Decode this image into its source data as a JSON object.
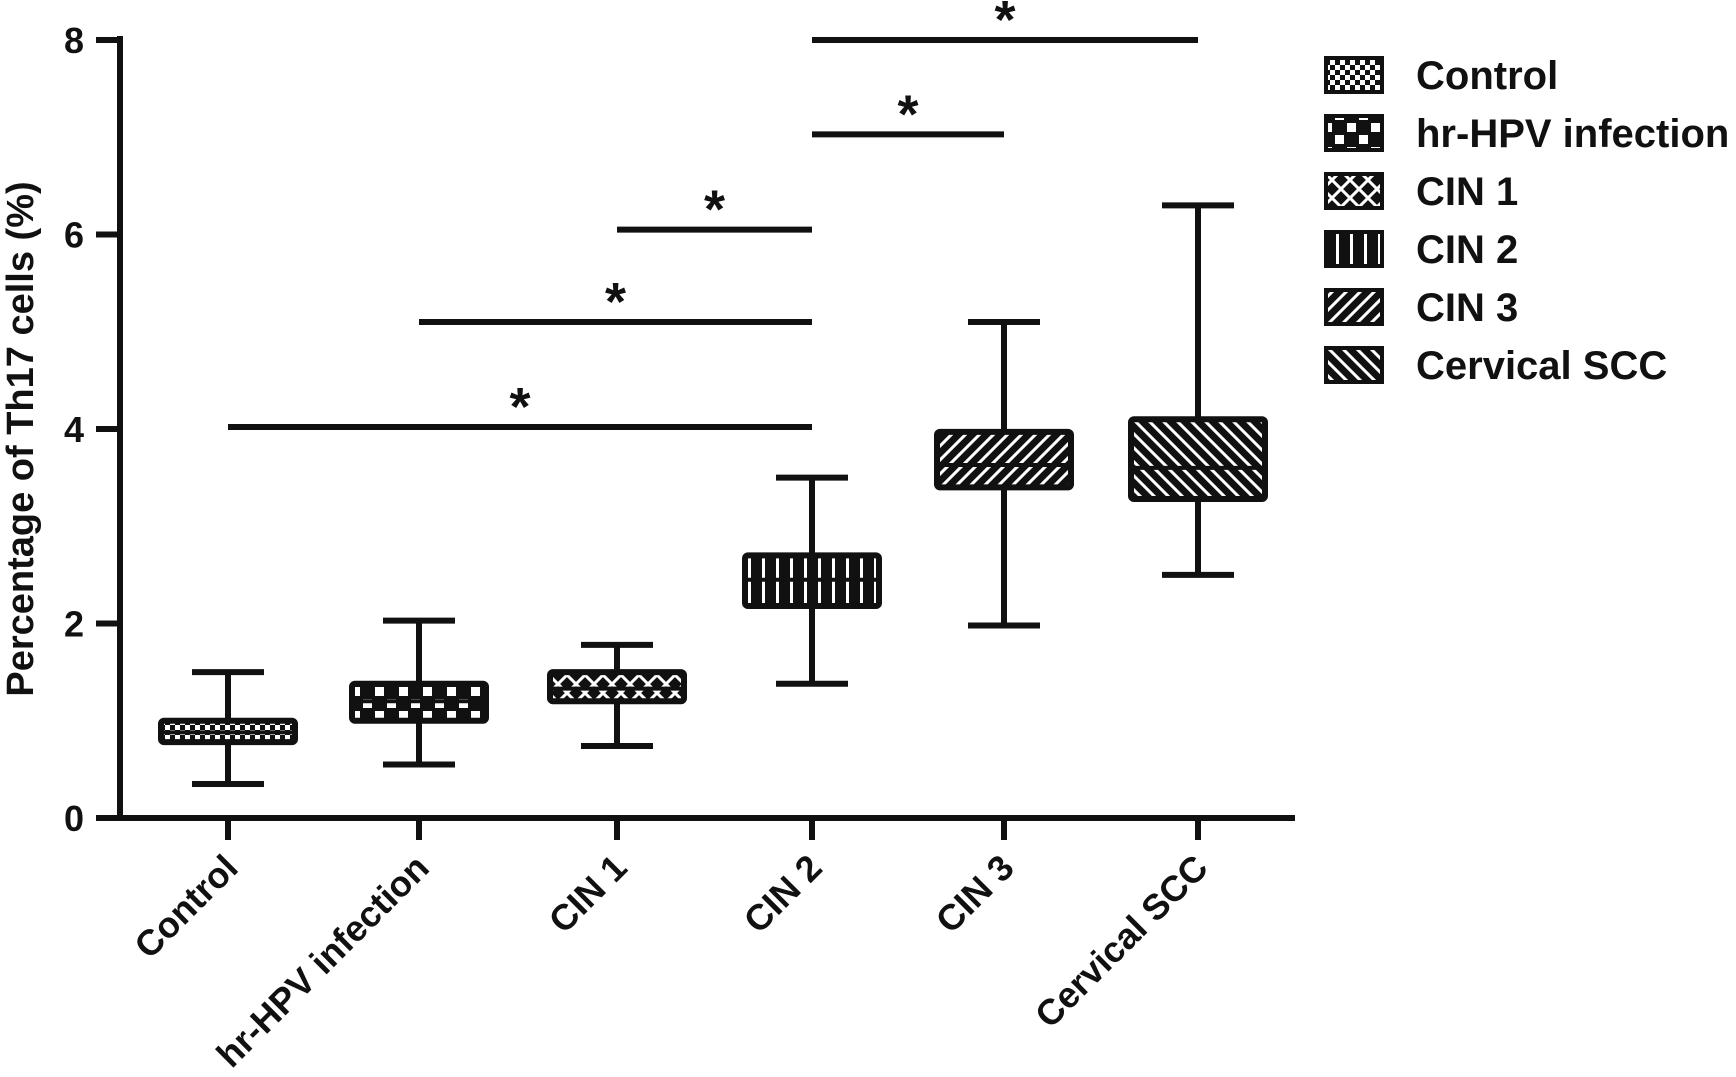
{
  "chart_data": {
    "type": "box",
    "title": "",
    "xlabel": "",
    "ylabel": "Percentage of Th17 cells (%)",
    "ylim": [
      0,
      8
    ],
    "yticks": [
      0,
      2,
      4,
      6,
      8
    ],
    "grid": false,
    "legend_position": "right",
    "categories": [
      "Control",
      "hr-HPV infection",
      "CIN 1",
      "CIN 2",
      "CIN 3",
      "Cervical SCC"
    ],
    "series": [
      {
        "name": "Control",
        "pattern": "checker-fine",
        "min": 0.35,
        "q1": 0.78,
        "median": 0.88,
        "q3": 1.0,
        "max": 1.5
      },
      {
        "name": "hr-HPV infection",
        "pattern": "checker-coarse",
        "min": 0.55,
        "q1": 1.0,
        "median": 1.2,
        "q3": 1.38,
        "max": 2.03
      },
      {
        "name": "CIN 1",
        "pattern": "crosshatch",
        "min": 0.74,
        "q1": 1.2,
        "median": 1.33,
        "q3": 1.5,
        "max": 1.78
      },
      {
        "name": "CIN 2",
        "pattern": "vertical-lines",
        "min": 1.38,
        "q1": 2.18,
        "median": 2.45,
        "q3": 2.7,
        "max": 3.5
      },
      {
        "name": "CIN 3",
        "pattern": "diagonal-up",
        "min": 1.98,
        "q1": 3.4,
        "median": 3.63,
        "q3": 3.97,
        "max": 5.1
      },
      {
        "name": "Cervical SCC",
        "pattern": "diagonal-down",
        "min": 2.5,
        "q1": 3.28,
        "median": 3.6,
        "q3": 4.1,
        "max": 6.3
      }
    ],
    "significance": [
      {
        "from": 0,
        "to": 3,
        "y": 4.02,
        "label": "*"
      },
      {
        "from": 1,
        "to": 3,
        "y": 5.1,
        "label": "*"
      },
      {
        "from": 2,
        "to": 3,
        "y": 6.05,
        "label": "*"
      },
      {
        "from": 3,
        "to": 4,
        "y": 7.03,
        "label": "*"
      },
      {
        "from": 3,
        "to": 5,
        "y": 8.0,
        "label": "*"
      }
    ]
  }
}
